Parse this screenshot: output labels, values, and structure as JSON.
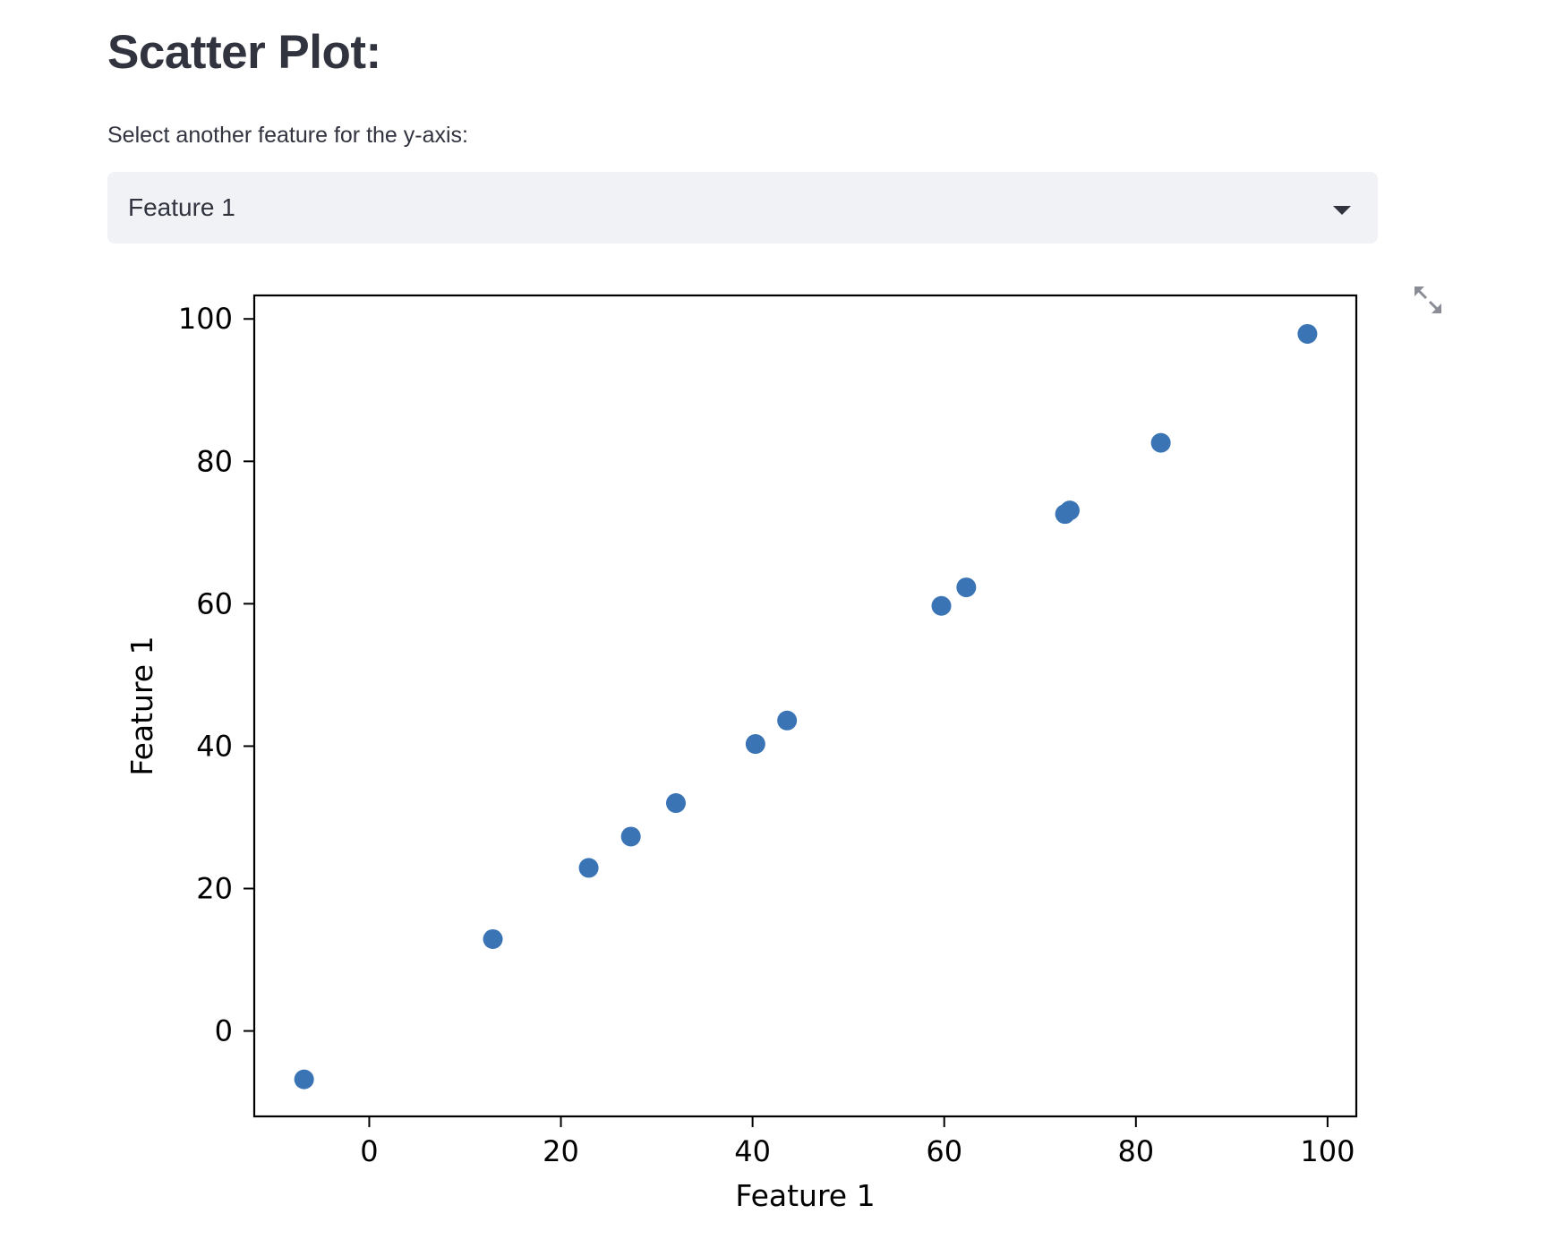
{
  "page": {
    "title": "Scatter Plot:",
    "select_label": "Select another feature for the y-axis:",
    "select_value": "Feature 1"
  },
  "icons": {
    "fullscreen": "expand-arrows-icon",
    "dropdown": "chevron-down-icon"
  },
  "colors": {
    "point": "#3a74b5",
    "select_bg": "#f0f2f6",
    "text": "#31333f"
  },
  "chart_data": {
    "type": "scatter",
    "title": "",
    "xlabel": "Feature 1",
    "ylabel": "Feature 1",
    "xlim": [
      -12,
      103
    ],
    "ylim": [
      -12,
      103.3
    ],
    "xticks": [
      0,
      20,
      40,
      60,
      80,
      100
    ],
    "yticks": [
      0,
      20,
      40,
      60,
      80,
      100
    ],
    "grid": false,
    "series": [
      {
        "x": [
          -6.8,
          12.9,
          22.9,
          27.3,
          32.0,
          40.3,
          43.6,
          59.7,
          62.3,
          72.6,
          73.1,
          82.6,
          97.9
        ],
        "y": [
          -6.8,
          12.9,
          22.9,
          27.3,
          32.0,
          40.3,
          43.6,
          59.7,
          62.3,
          72.6,
          73.1,
          82.6,
          97.9
        ]
      }
    ]
  }
}
